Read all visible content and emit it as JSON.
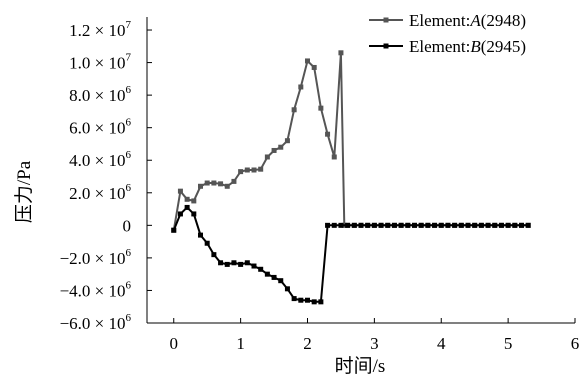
{
  "chart_data": {
    "type": "line",
    "title": "",
    "xlabel": "时间/s",
    "ylabel": "压力/Pa",
    "xlim": [
      -0.4,
      6
    ],
    "ylim": [
      -6000000,
      12800000
    ],
    "x_ticks": [
      0,
      1,
      2,
      3,
      4,
      5,
      6
    ],
    "x_tick_labels": [
      "0",
      "1",
      "2",
      "3",
      "4",
      "5",
      "6"
    ],
    "y_ticks": [
      {
        "value": 12000000,
        "mantissa": "1.2",
        "exp": "7"
      },
      {
        "value": 10000000,
        "mantissa": "1.0",
        "exp": "7"
      },
      {
        "value": 8000000,
        "mantissa": "8.0",
        "exp": "6"
      },
      {
        "value": 6000000,
        "mantissa": "6.0",
        "exp": "6"
      },
      {
        "value": 4000000,
        "mantissa": "4.0",
        "exp": "6"
      },
      {
        "value": 2000000,
        "mantissa": "2.0",
        "exp": "6"
      },
      {
        "value": 0,
        "mantissa": "0",
        "exp": ""
      },
      {
        "value": -2000000,
        "mantissa": "−2.0",
        "exp": "6"
      },
      {
        "value": -4000000,
        "mantissa": "−4.0",
        "exp": "6"
      },
      {
        "value": -6000000,
        "mantissa": "−6.0",
        "exp": "6"
      }
    ],
    "times_sign": "× 10",
    "grid": false,
    "legend_position": "top-right",
    "series": [
      {
        "name": "Element:A(2948)",
        "legend_prefix": "Element:",
        "legend_letter": "A",
        "legend_suffix": "(2948)",
        "color": "#555555",
        "x": [
          0,
          0.1,
          0.2,
          0.3,
          0.4,
          0.5,
          0.6,
          0.7,
          0.8,
          0.9,
          1.0,
          1.1,
          1.2,
          1.3,
          1.4,
          1.5,
          1.6,
          1.7,
          1.8,
          1.9,
          2.0,
          2.1,
          2.2,
          2.3,
          2.4,
          2.5,
          2.55,
          2.6,
          2.7,
          2.8,
          2.9,
          3.0,
          3.1,
          3.2,
          3.3,
          3.4,
          3.5,
          3.6,
          3.7,
          3.8,
          3.9,
          4.0,
          4.1,
          4.2,
          4.3,
          4.4,
          4.5,
          4.6,
          4.7,
          4.8,
          4.9,
          5.0,
          5.1,
          5.2,
          5.3
        ],
        "y": [
          -300000,
          2100000,
          1600000,
          1500000,
          2400000,
          2600000,
          2600000,
          2550000,
          2400000,
          2700000,
          3300000,
          3400000,
          3400000,
          3450000,
          4200000,
          4600000,
          4800000,
          5200000,
          7100000,
          8500000,
          10100000,
          9700000,
          7200000,
          5600000,
          4200000,
          10600000,
          0,
          0,
          0,
          0,
          0,
          0,
          0,
          0,
          0,
          0,
          0,
          0,
          0,
          0,
          0,
          0,
          0,
          0,
          0,
          0,
          0,
          0,
          0,
          0,
          0,
          0,
          0,
          0,
          0
        ]
      },
      {
        "name": "Element:B(2945)",
        "legend_prefix": "Element:",
        "legend_letter": "B",
        "legend_suffix": "(2945)",
        "color": "#000000",
        "x": [
          0,
          0.1,
          0.2,
          0.3,
          0.4,
          0.5,
          0.6,
          0.7,
          0.8,
          0.9,
          1.0,
          1.1,
          1.2,
          1.3,
          1.4,
          1.5,
          1.6,
          1.7,
          1.8,
          1.9,
          2.0,
          2.1,
          2.2,
          2.3,
          2.4,
          2.5,
          2.6,
          2.7,
          2.8,
          2.9,
          3.0,
          3.1,
          3.2,
          3.3,
          3.4,
          3.5,
          3.6,
          3.7,
          3.8,
          3.9,
          4.0,
          4.1,
          4.2,
          4.3,
          4.4,
          4.5,
          4.6,
          4.7,
          4.8,
          4.9,
          5.0,
          5.1,
          5.2,
          5.3
        ],
        "y": [
          -300000,
          700000,
          1100000,
          700000,
          -600000,
          -1100000,
          -1800000,
          -2300000,
          -2400000,
          -2300000,
          -2400000,
          -2300000,
          -2500000,
          -2700000,
          -3000000,
          -3200000,
          -3400000,
          -3900000,
          -4500000,
          -4600000,
          -4600000,
          -4700000,
          -4700000,
          0,
          0,
          0,
          0,
          0,
          0,
          0,
          0,
          0,
          0,
          0,
          0,
          0,
          0,
          0,
          0,
          0,
          0,
          0,
          0,
          0,
          0,
          0,
          0,
          0,
          0,
          0,
          0,
          0,
          0,
          0
        ]
      }
    ]
  }
}
